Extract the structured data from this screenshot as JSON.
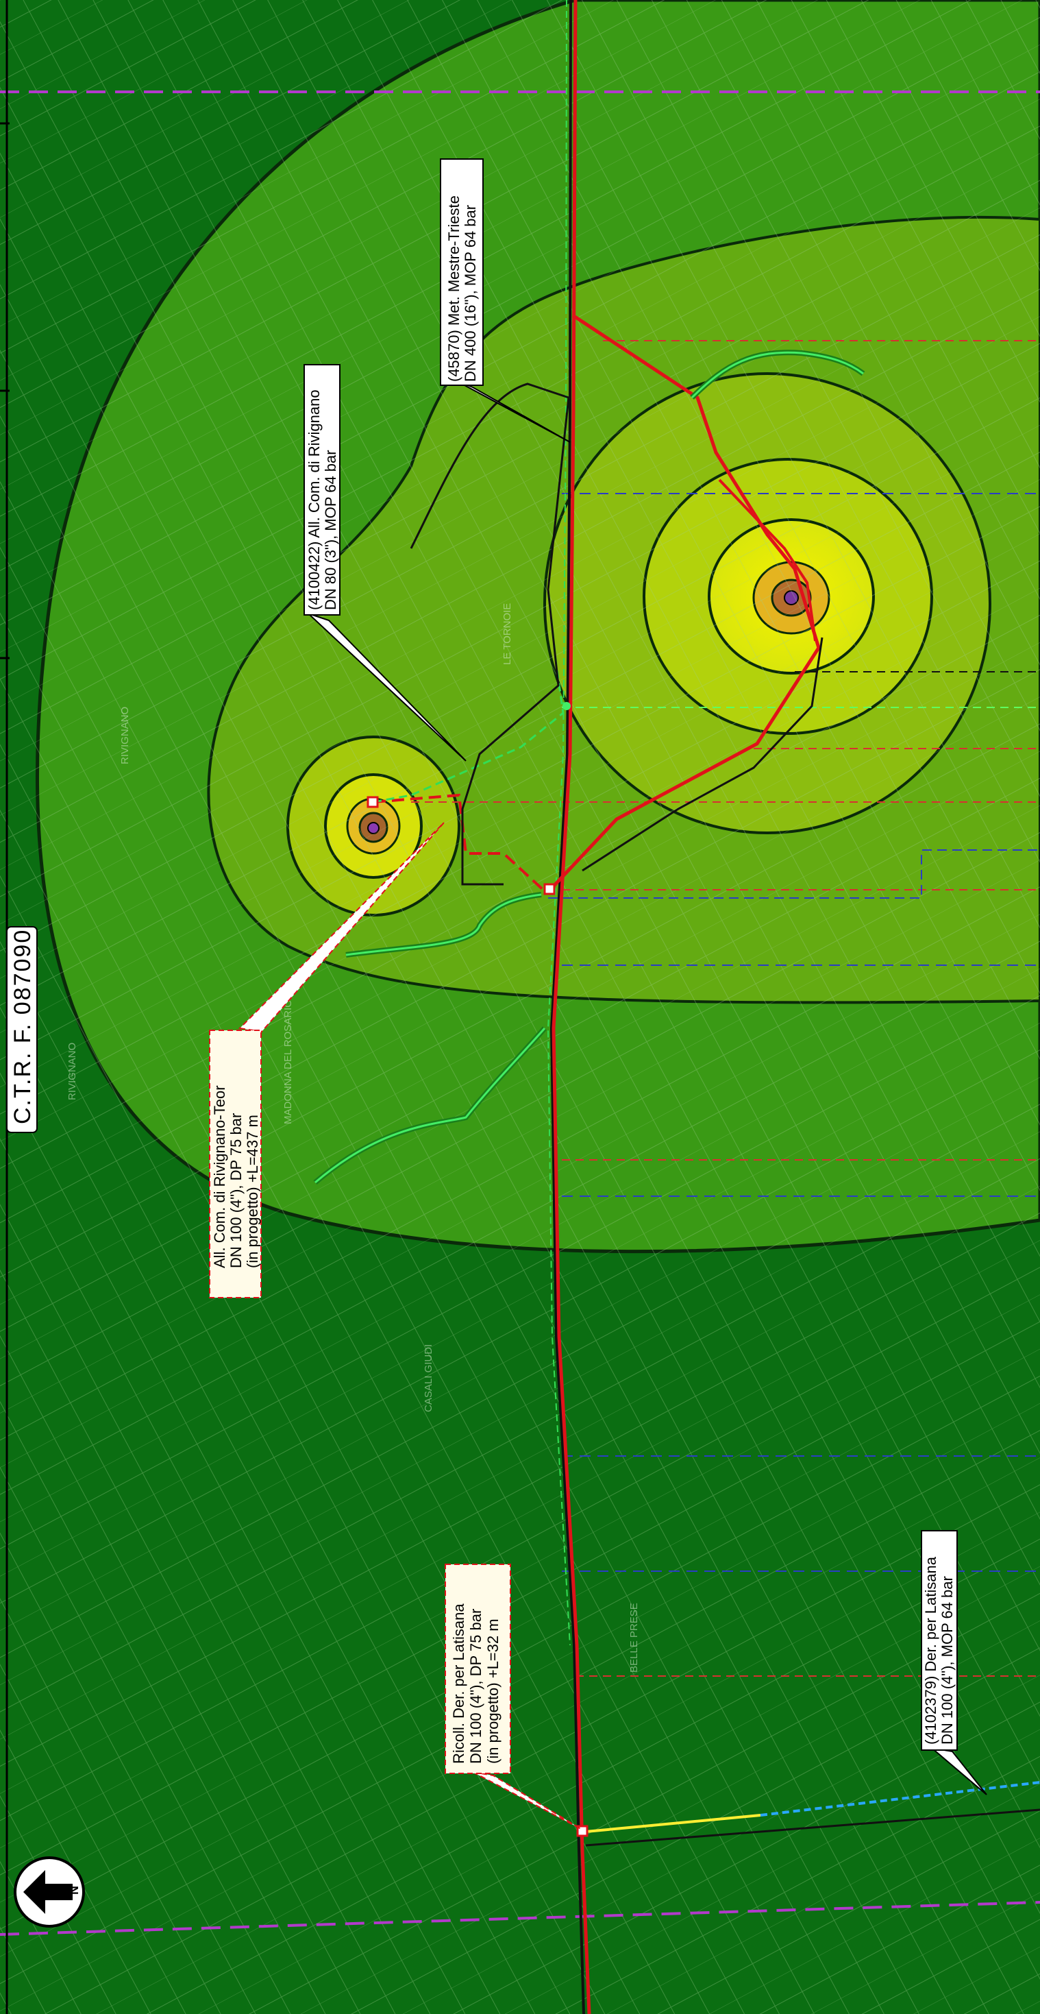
{
  "map": {
    "sheet_label": "C.T.R.  F.  087090",
    "north_symbol": "N",
    "colors": {
      "background": "#0b6e12",
      "zone_outer": "#3a9a15",
      "zone_mid": "#64ab12",
      "zone_inner": "#a4c90c",
      "zone_core": "#e4ee0a",
      "pipeline_existing": "#e0121a",
      "pipeline_green": "#33dd55",
      "grid_magenta": "#b23acb",
      "grid_blue": "#2a3ec4"
    },
    "callouts": [
      {
        "id": "mestre-trieste",
        "lines": [
          "(45870) Met. Mestre-Trieste",
          "DN 400 (16\"), MOP 64 bar"
        ]
      },
      {
        "id": "rivignano-existing",
        "lines": [
          "(4100422) All. Com. di Rivignano",
          "DN 80 (3\"), MOP 64 bar"
        ]
      },
      {
        "id": "rivignano-teor",
        "lines": [
          "All. Com. di Rivignano-Teor",
          "DN 100 (4\"), DP 75 bar",
          "(in progetto) +L=437 m"
        ]
      },
      {
        "id": "ricoll-latisana",
        "lines": [
          "Ricoll. Der. per Latisana",
          "DN 100 (4\"), DP 75 bar",
          "(in progetto) +L=32 m"
        ]
      },
      {
        "id": "der-latisana",
        "lines": [
          "(4102379) Der. per Latisana",
          "DN 100 (4\"), MOP 64 bar"
        ]
      }
    ],
    "place_names": [
      "RIVIGNANO",
      "RIVIGNANO",
      "LE TORNOIE",
      "MADONNA DEL ROSARIO",
      "CASALI GIUDI",
      "BELLE PRESE"
    ]
  }
}
